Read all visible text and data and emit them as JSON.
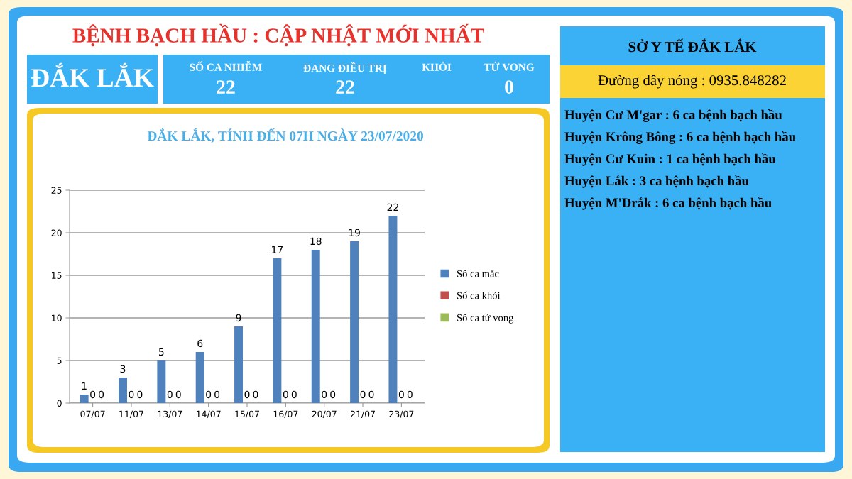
{
  "chart_data": [
    {
      "type": "other",
      "title": "BỆNH BẠCH HẦU : CẬP NHẬT MỚI NHẤT",
      "annotations": [
        "ĐẮK LẮK",
        "SỐ CA NHIỄM",
        "22",
        "ĐANG ĐIỀU TRỊ",
        "22",
        "KHỎI",
        "TỬ VONG",
        "0"
      ]
    },
    {
      "type": "bar",
      "title": "ĐẮK LẮK, TÍNH ĐẾN 07H NGÀY 23/07/2020",
      "categories": [
        "07/07",
        "11/07",
        "13/07",
        "14/07",
        "15/07",
        "16/07",
        "20/07",
        "21/07",
        "23/07"
      ],
      "series": [
        {
          "name": "Số ca mắc",
          "color": "#4f81bd",
          "values": [
            1,
            3,
            5,
            6,
            9,
            17,
            18,
            19,
            22
          ]
        },
        {
          "name": "Số ca khỏi",
          "color": "#c0504d",
          "values": [
            0,
            0,
            0,
            0,
            0,
            0,
            0,
            0,
            0
          ]
        },
        {
          "name": "Số ca tử vong",
          "color": "#9bbb59",
          "values": [
            0,
            0,
            0,
            0,
            0,
            0,
            0,
            0,
            0
          ]
        }
      ],
      "ylim": [
        0,
        25
      ],
      "yticks": [
        0,
        5,
        10,
        15,
        20,
        25
      ],
      "grid": "y",
      "legend": "right",
      "data_labels": true
    },
    {
      "type": "other",
      "title": "SỞ Y TẾ ĐẮK LẮK",
      "subtitle": "Đường dây nóng : 0935.848282",
      "annotations": [
        "Huyện Cư M'gar : 6 ca bệnh bạch hầu",
        "Huyện Krông Bông : 6 ca bệnh bạch hầu",
        "Huyện Cư Kuin : 1 ca bệnh bạch hầu",
        "Huyện Lắk : 3 ca bệnh bạch hầu",
        "Huyện M'Drắk : 6 ca bệnh bạch hầu"
      ]
    }
  ]
}
